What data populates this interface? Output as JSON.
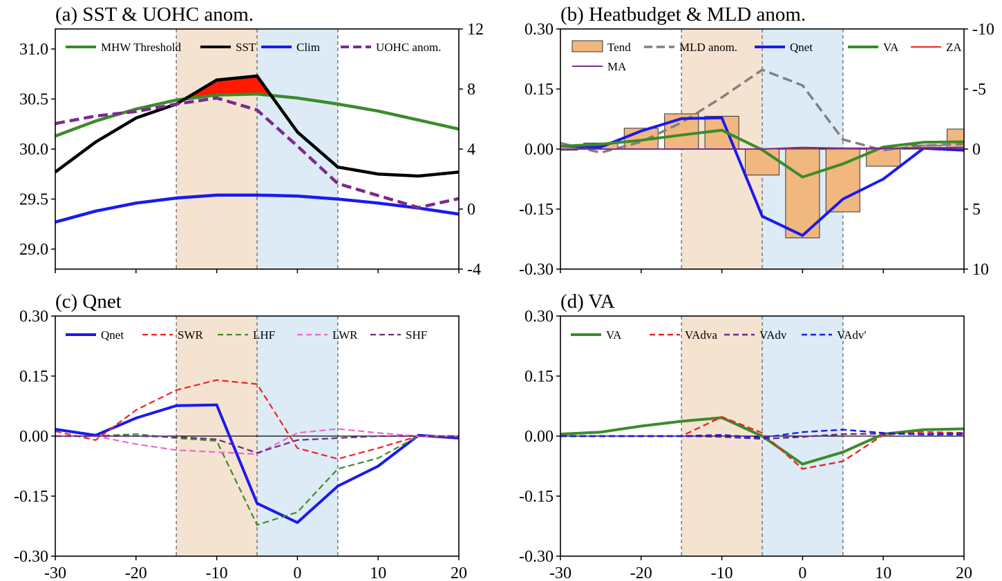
{
  "colors": {
    "pre_shade": "#f5e3d1",
    "post_shade": "#dcebf6",
    "mhw": "#3b8b2a",
    "sst": "#000000",
    "clim": "#1a1aee",
    "uohc": "#7b2a8d",
    "exceed_fill": "#ff1a00",
    "tend_bar": "#f0b77f",
    "mld": "#808080",
    "qnet": "#1a1aee",
    "va": "#3b8b2a",
    "za": "#ee2222",
    "ma": "#7b2a8d",
    "swr": "#ee2222",
    "lhf": "#3b8b2a",
    "lwr": "#ee66cc",
    "shf": "#6a2a8a",
    "vadva": "#ee2222",
    "vadv": "#6a2a8a",
    "vadvp": "#1a1aee"
  },
  "chart_data": [
    {
      "id": "a",
      "type": "line",
      "title": "(a) SST & UOHC anom.",
      "xlim": [
        -30,
        20
      ],
      "ylim": [
        28.8,
        31.2
      ],
      "yticks": [
        "29.0",
        "29.5",
        "30.0",
        "30.5",
        "31.0"
      ],
      "ytick_values": [
        29.0,
        29.5,
        30.0,
        30.5,
        31.0
      ],
      "y2lim": [
        -4,
        12
      ],
      "y2ticks": [
        "-4",
        "0",
        "4",
        "8",
        "12"
      ],
      "y2tick_values": [
        -4,
        0,
        4,
        8,
        12
      ],
      "shade_pre": [
        -15,
        -5
      ],
      "shade_post": [
        -5,
        5
      ],
      "vlines": [
        -15,
        -5,
        5
      ],
      "x": [
        -30,
        -25,
        -20,
        -15,
        -10,
        -5,
        0,
        5,
        10,
        15,
        20
      ],
      "series": [
        {
          "name": "MHW Threshold",
          "axis": "left",
          "style": "solid",
          "width": 4.5,
          "color_key": "mhw",
          "values": [
            30.13,
            30.28,
            30.4,
            30.49,
            30.54,
            30.55,
            30.51,
            30.45,
            30.38,
            30.29,
            30.2
          ]
        },
        {
          "name": "SST",
          "axis": "left",
          "style": "solid",
          "width": 4.5,
          "color_key": "sst",
          "values": [
            29.77,
            30.07,
            30.31,
            30.45,
            30.69,
            30.73,
            30.17,
            29.82,
            29.75,
            29.73,
            29.77
          ]
        },
        {
          "name": "Clim",
          "axis": "left",
          "style": "solid",
          "width": 4.5,
          "color_key": "clim",
          "values": [
            29.27,
            29.38,
            29.46,
            29.51,
            29.54,
            29.54,
            29.53,
            29.5,
            29.46,
            29.41,
            29.35
          ]
        },
        {
          "name": "UOHC anom.",
          "axis": "right",
          "style": "dashed",
          "width": 4.5,
          "color_key": "uohc",
          "values": [
            5.7,
            6.2,
            6.5,
            7.0,
            7.4,
            6.6,
            4.2,
            1.7,
            0.9,
            0.1,
            0.7
          ]
        }
      ],
      "legend": {
        "position": "top",
        "columns": 4
      }
    },
    {
      "id": "b",
      "type": "bar+line",
      "title": "(b) Heatbudget & MLD anom.",
      "xlim": [
        -30,
        20
      ],
      "ylim": [
        -0.3,
        0.3
      ],
      "yticks": [
        "-0.30",
        "-0.15",
        "0.00",
        "0.15",
        "0.30"
      ],
      "ytick_values": [
        -0.3,
        -0.15,
        0.0,
        0.15,
        0.3
      ],
      "y2lim": [
        10,
        -10
      ],
      "y2ticks": [
        "10",
        "5",
        "0",
        "-5",
        "-10"
      ],
      "y2tick_values": [
        10,
        5,
        0,
        -5,
        -10
      ],
      "shade_pre": [
        -15,
        -5
      ],
      "shade_post": [
        -5,
        5
      ],
      "vlines": [
        -15,
        -5,
        5
      ],
      "zero_line": true,
      "x": [
        -30,
        -25,
        -20,
        -15,
        -10,
        -5,
        0,
        5,
        10,
        15,
        20
      ],
      "bars": {
        "name": "Tend",
        "color_key": "tend_bar",
        "x": [
          -30,
          -25,
          -20,
          -15,
          -10,
          -5,
          0,
          5,
          10,
          15,
          20
        ],
        "values": [
          -0.003,
          0.015,
          0.052,
          0.088,
          0.082,
          -0.065,
          -0.222,
          -0.157,
          -0.043,
          0.01,
          0.05
        ]
      },
      "series": [
        {
          "name": "MLD anom.",
          "axis": "right",
          "style": "dashed",
          "width": 3.5,
          "color_key": "mld",
          "values": [
            -0.5,
            0.3,
            -0.6,
            -2.2,
            -4.3,
            -6.6,
            -5.3,
            -0.8,
            0.1,
            -0.3,
            -0.4
          ]
        },
        {
          "name": "Qnet",
          "axis": "left",
          "style": "solid",
          "width": 4,
          "color_key": "qnet",
          "values": [
            0.007,
            0.005,
            0.045,
            0.076,
            0.078,
            -0.168,
            -0.216,
            -0.125,
            -0.075,
            0.002,
            -0.003
          ]
        },
        {
          "name": "VA",
          "axis": "left",
          "style": "solid",
          "width": 4,
          "color_key": "va",
          "values": [
            0.007,
            0.012,
            0.022,
            0.035,
            0.047,
            -0.002,
            -0.07,
            -0.037,
            0.005,
            0.017,
            0.018
          ]
        },
        {
          "name": "ZA",
          "axis": "left",
          "style": "solid",
          "width": 2,
          "color_key": "za",
          "values": [
            0.0,
            0.0,
            0.0,
            0.0,
            0.0,
            0.0,
            0.003,
            0.002,
            0.002,
            0.003,
            0.003
          ]
        },
        {
          "name": "MA",
          "axis": "left",
          "style": "solid",
          "width": 2,
          "color_key": "ma",
          "values": [
            0.0,
            0.0,
            0.0,
            0.0,
            0.0,
            0.0,
            0.004,
            0.002,
            0.002,
            0.003,
            0.004
          ]
        }
      ],
      "legend": {
        "position": "top",
        "columns": 5
      }
    },
    {
      "id": "c",
      "type": "line",
      "title": "(c) Qnet",
      "xlim": [
        -30,
        20
      ],
      "xticks": [
        "-30",
        "-20",
        "-10",
        "0",
        "10",
        "20"
      ],
      "xtick_values": [
        -30,
        -20,
        -10,
        0,
        10,
        20
      ],
      "ylim": [
        -0.3,
        0.3
      ],
      "yticks": [
        "-0.30",
        "-0.15",
        "0.00",
        "0.15",
        "0.30"
      ],
      "ytick_values": [
        -0.3,
        -0.15,
        0.0,
        0.15,
        0.3
      ],
      "shade_pre": [
        -15,
        -5
      ],
      "shade_post": [
        -5,
        5
      ],
      "vlines": [
        -15,
        -5,
        5
      ],
      "zero_line": true,
      "x": [
        -30,
        -25,
        -20,
        -15,
        -10,
        -5,
        0,
        5,
        10,
        15,
        20
      ],
      "series": [
        {
          "name": "Qnet",
          "style": "solid",
          "width": 4,
          "color_key": "qnet",
          "values": [
            0.017,
            0.002,
            0.045,
            0.076,
            0.078,
            -0.168,
            -0.216,
            -0.125,
            -0.075,
            0.002,
            -0.005
          ]
        },
        {
          "name": "SWR",
          "style": "dashed",
          "width": 2.2,
          "color_key": "swr",
          "values": [
            0.012,
            -0.01,
            0.065,
            0.115,
            0.14,
            0.13,
            -0.03,
            -0.057,
            -0.03,
            0.0,
            0.0
          ]
        },
        {
          "name": "LHF",
          "style": "dashed",
          "width": 2.2,
          "color_key": "lhf",
          "values": [
            0.0,
            0.0,
            0.005,
            -0.005,
            -0.012,
            -0.222,
            -0.19,
            -0.082,
            -0.055,
            0.0,
            0.0
          ]
        },
        {
          "name": "LWR",
          "style": "dashed",
          "width": 2.2,
          "color_key": "lwr",
          "values": [
            0.0,
            0.0,
            -0.02,
            -0.035,
            -0.04,
            -0.045,
            0.008,
            0.018,
            0.008,
            0.0,
            0.0
          ]
        },
        {
          "name": "SHF",
          "style": "dashed",
          "width": 2.2,
          "color_key": "shf",
          "values": [
            0.0,
            0.0,
            0.0,
            -0.002,
            -0.008,
            -0.042,
            -0.01,
            -0.005,
            0.0,
            0.0,
            0.0
          ]
        }
      ],
      "legend": {
        "position": "top",
        "columns": 5
      }
    },
    {
      "id": "d",
      "type": "line",
      "title": "(d) VA",
      "xlim": [
        -30,
        20
      ],
      "xticks": [
        "-30",
        "-20",
        "-10",
        "0",
        "10",
        "20"
      ],
      "xtick_values": [
        -30,
        -20,
        -10,
        0,
        10,
        20
      ],
      "ylim": [
        -0.3,
        0.3
      ],
      "yticks": [
        "-0.30",
        "-0.15",
        "0.00",
        "0.15",
        "0.30"
      ],
      "ytick_values": [
        -0.3,
        -0.15,
        0.0,
        0.15,
        0.3
      ],
      "shade_pre": [
        -15,
        -5
      ],
      "shade_post": [
        -5,
        5
      ],
      "vlines": [
        -15,
        -5,
        5
      ],
      "zero_line": true,
      "x": [
        -30,
        -25,
        -20,
        -15,
        -10,
        -5,
        0,
        5,
        10,
        15,
        20
      ],
      "series": [
        {
          "name": "VA",
          "style": "solid",
          "width": 4,
          "color_key": "va",
          "values": [
            0.005,
            0.01,
            0.025,
            0.037,
            0.046,
            0.0,
            -0.07,
            -0.04,
            0.005,
            0.016,
            0.018
          ]
        },
        {
          "name": "VAdva",
          "style": "dashed",
          "width": 2.4,
          "color_key": "vadva",
          "values": [
            0.0,
            0.0,
            0.0,
            0.0,
            0.048,
            0.008,
            -0.082,
            -0.063,
            0.003,
            0.01,
            0.008
          ]
        },
        {
          "name": "VAdv",
          "style": "dashed",
          "width": 2.4,
          "color_key": "vadv",
          "values": [
            0.0,
            0.0,
            0.0,
            0.0,
            -0.002,
            -0.007,
            -0.002,
            0.005,
            0.006,
            0.005,
            0.007
          ]
        },
        {
          "name": "VAdv′",
          "style": "dashed",
          "width": 2.4,
          "color_key": "vadvp",
          "values": [
            0.0,
            0.0,
            0.0,
            0.0,
            0.003,
            -0.004,
            0.01,
            0.016,
            0.008,
            0.004,
            0.004
          ]
        }
      ],
      "legend": {
        "position": "top",
        "columns": 4
      }
    }
  ]
}
